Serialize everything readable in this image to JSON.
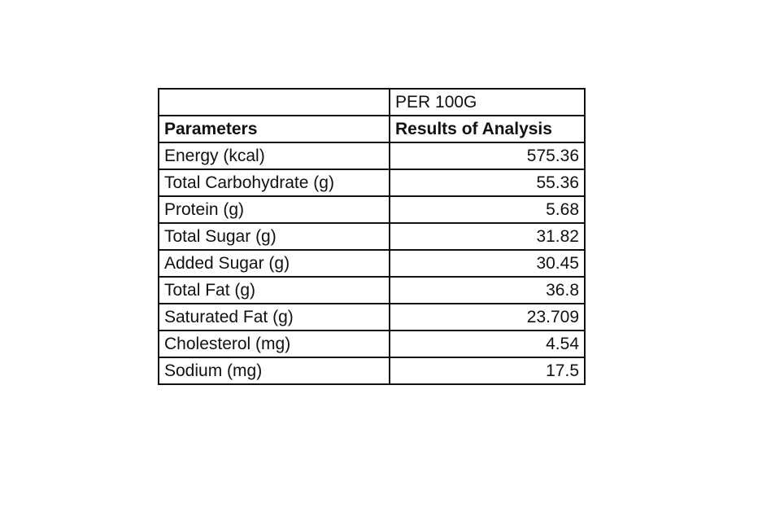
{
  "table": {
    "top_header": "PER 100G",
    "columns": [
      "Parameters",
      "Results of Analysis"
    ],
    "rows": [
      [
        "Energy (kcal)",
        575.36
      ],
      [
        "Total Carbohydrate (g)",
        55.36
      ],
      [
        "Protein (g)",
        5.68
      ],
      [
        "Total Sugar (g)",
        31.82
      ],
      [
        "Added Sugar (g)",
        30.45
      ],
      [
        "Total Fat (g)",
        36.8
      ],
      [
        "Saturated Fat (g)",
        23.709
      ],
      [
        "Cholesterol (mg)",
        4.54
      ],
      [
        "Sodium (mg)",
        17.5
      ]
    ]
  }
}
